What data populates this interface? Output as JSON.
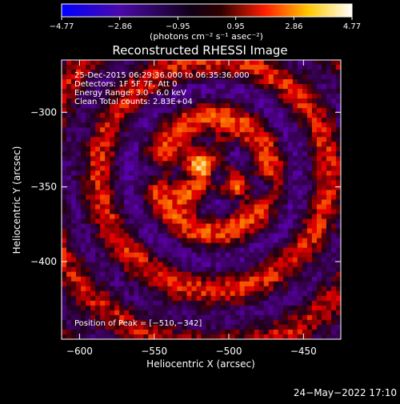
{
  "chart_data": {
    "type": "heatmap",
    "title": "Reconstructed RHESSI Image",
    "xlabel": "Heliocentric X (arcsec)",
    "ylabel": "Heliocentric Y (arcsec)",
    "xlim": [
      -612,
      -425
    ],
    "ylim": [
      -452,
      -265
    ],
    "x_ticks": [
      -600,
      -550,
      -500,
      -450
    ],
    "x_tick_labels": [
      "−600",
      "−550",
      "−500",
      "−450"
    ],
    "y_ticks": [
      -300,
      -350,
      -400
    ],
    "y_tick_labels": [
      "−300",
      "−350",
      "−400"
    ],
    "colorbar": {
      "min": -4.77,
      "max": 4.77,
      "tick_labels": [
        "−4.77",
        "−2.86",
        "−0.95",
        "0.95",
        "2.86",
        "4.77"
      ],
      "unit_label": "(photons cm⁻² s⁻¹ asec⁻²)",
      "colors": [
        "#0000ff",
        "#6a0dad",
        "#000000",
        "#ff2a00",
        "#ffd400",
        "#ffffff"
      ]
    },
    "annotations": [
      "25-Dec-2015 06:29:36.000 to 06:35:36.000",
      "Detectors: 1F 5F 7F, Att 0",
      "Energy Range: 3.0 - 6.0 keV",
      "Clean    Total counts: 2.83E+04"
    ],
    "peak_label": "Position of Peak = [−510,−342]",
    "peak": {
      "x": -510,
      "y": -342
    }
  },
  "footer": {
    "timestamp": "24−May−2022 17:10"
  }
}
